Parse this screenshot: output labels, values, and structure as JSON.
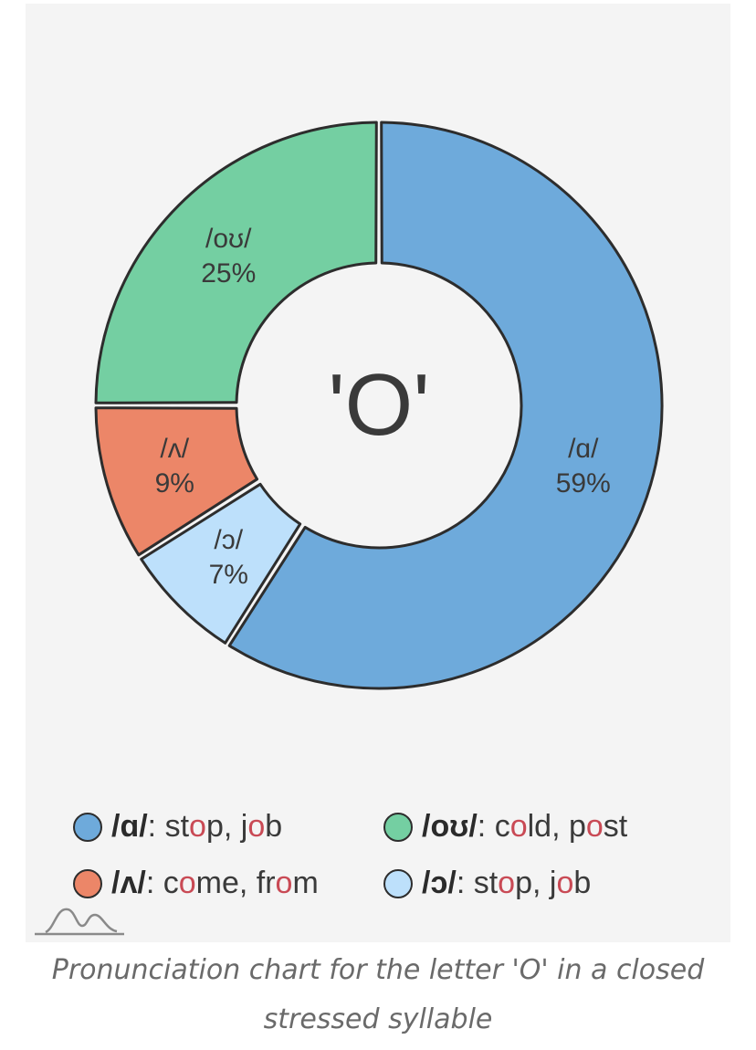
{
  "chart_data": {
    "type": "pie",
    "donut": true,
    "center_text": "'O'",
    "slices": [
      {
        "label": "/ɑ/",
        "value": 59,
        "value_text": "59%",
        "color": "#6eaadb"
      },
      {
        "label": "/ɔ/",
        "value": 7,
        "value_text": "7%",
        "color": "#bde0fb"
      },
      {
        "label": "/ʌ/",
        "value": 9,
        "value_text": "9%",
        "color": "#ec8668"
      },
      {
        "label": "/oʊ/",
        "value": 25,
        "value_text": "25%",
        "color": "#74cfa2"
      }
    ],
    "legend_position": "bottom",
    "legend": [
      {
        "ipa": "/ɑ/",
        "color": "#6eaadb",
        "words": [
          [
            {
              "t": "st"
            },
            {
              "t": "o",
              "hl": true
            },
            {
              "t": "p, j"
            },
            {
              "t": "o",
              "hl": true
            },
            {
              "t": "b"
            }
          ]
        ]
      },
      {
        "ipa": "/oʊ/",
        "color": "#74cfa2",
        "words": [
          [
            {
              "t": "c"
            },
            {
              "t": "o",
              "hl": true
            },
            {
              "t": "ld, p"
            },
            {
              "t": "o",
              "hl": true
            },
            {
              "t": "st"
            }
          ]
        ]
      },
      {
        "ipa": "/ʌ/",
        "color": "#ec8668",
        "words": [
          [
            {
              "t": "c"
            },
            {
              "t": "o",
              "hl": true
            },
            {
              "t": "me, fr"
            },
            {
              "t": "o",
              "hl": true
            },
            {
              "t": "m"
            }
          ]
        ]
      },
      {
        "ipa": "/ɔ/",
        "color": "#bde0fb",
        "words": [
          [
            {
              "t": "st"
            },
            {
              "t": "o",
              "hl": true
            },
            {
              "t": "p, j"
            },
            {
              "t": "o",
              "hl": true
            },
            {
              "t": "b"
            }
          ]
        ]
      }
    ],
    "highlight_color": "#c94a55",
    "stroke_color": "#2d2d2d"
  },
  "caption": "Pronunciation chart for the letter 'O' in a closed stressed syllable"
}
